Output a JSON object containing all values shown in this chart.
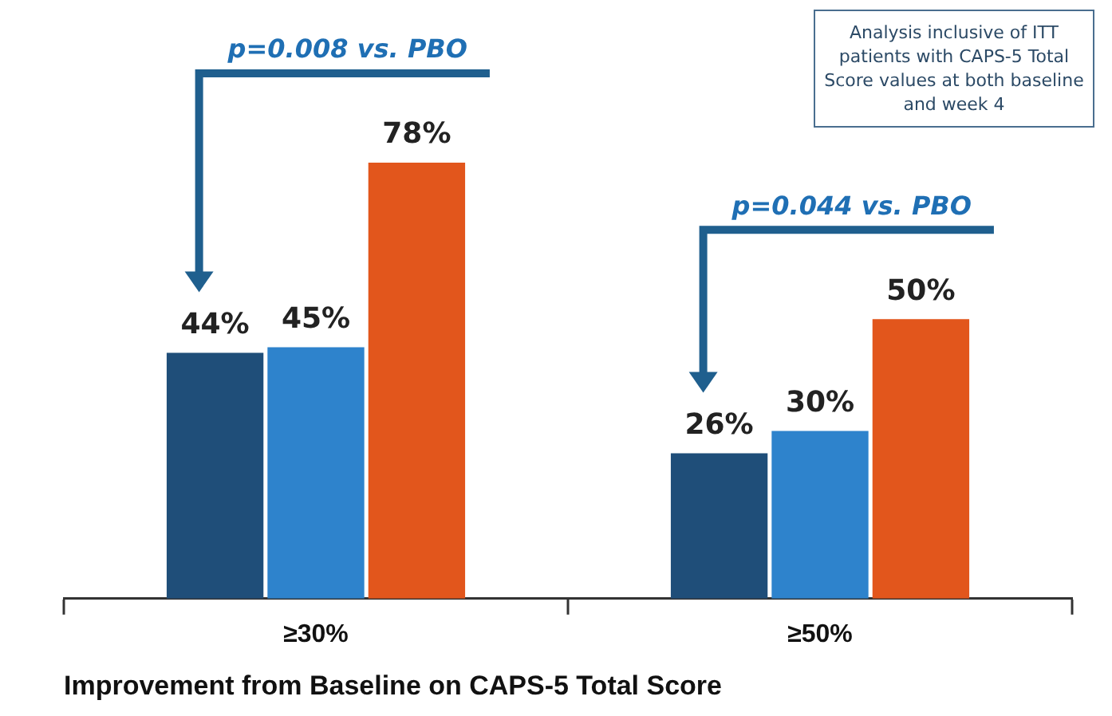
{
  "chart_data": {
    "type": "bar",
    "xlabel": "Improvement from Baseline on CAPS-5 Total Score",
    "categories": [
      "≥30%",
      "≥50%"
    ],
    "series": [
      {
        "color": "#1f4e79",
        "values": [
          44,
          26
        ],
        "value_labels": [
          "44%",
          "26%"
        ]
      },
      {
        "color": "#2e83cc",
        "values": [
          45,
          30
        ],
        "value_labels": [
          "45%",
          "30%"
        ]
      },
      {
        "color": "#e2561c",
        "values": [
          78,
          50
        ],
        "value_labels": [
          "78%",
          "50%"
        ]
      }
    ],
    "annotations": [
      "p=0.008 vs. PBO",
      "p=0.044 vs. PBO",
      "Analysis inclusive of ITT patients with CAPS-5 Total Score values at both baseline and week 4"
    ],
    "legend": false,
    "grid": false
  }
}
